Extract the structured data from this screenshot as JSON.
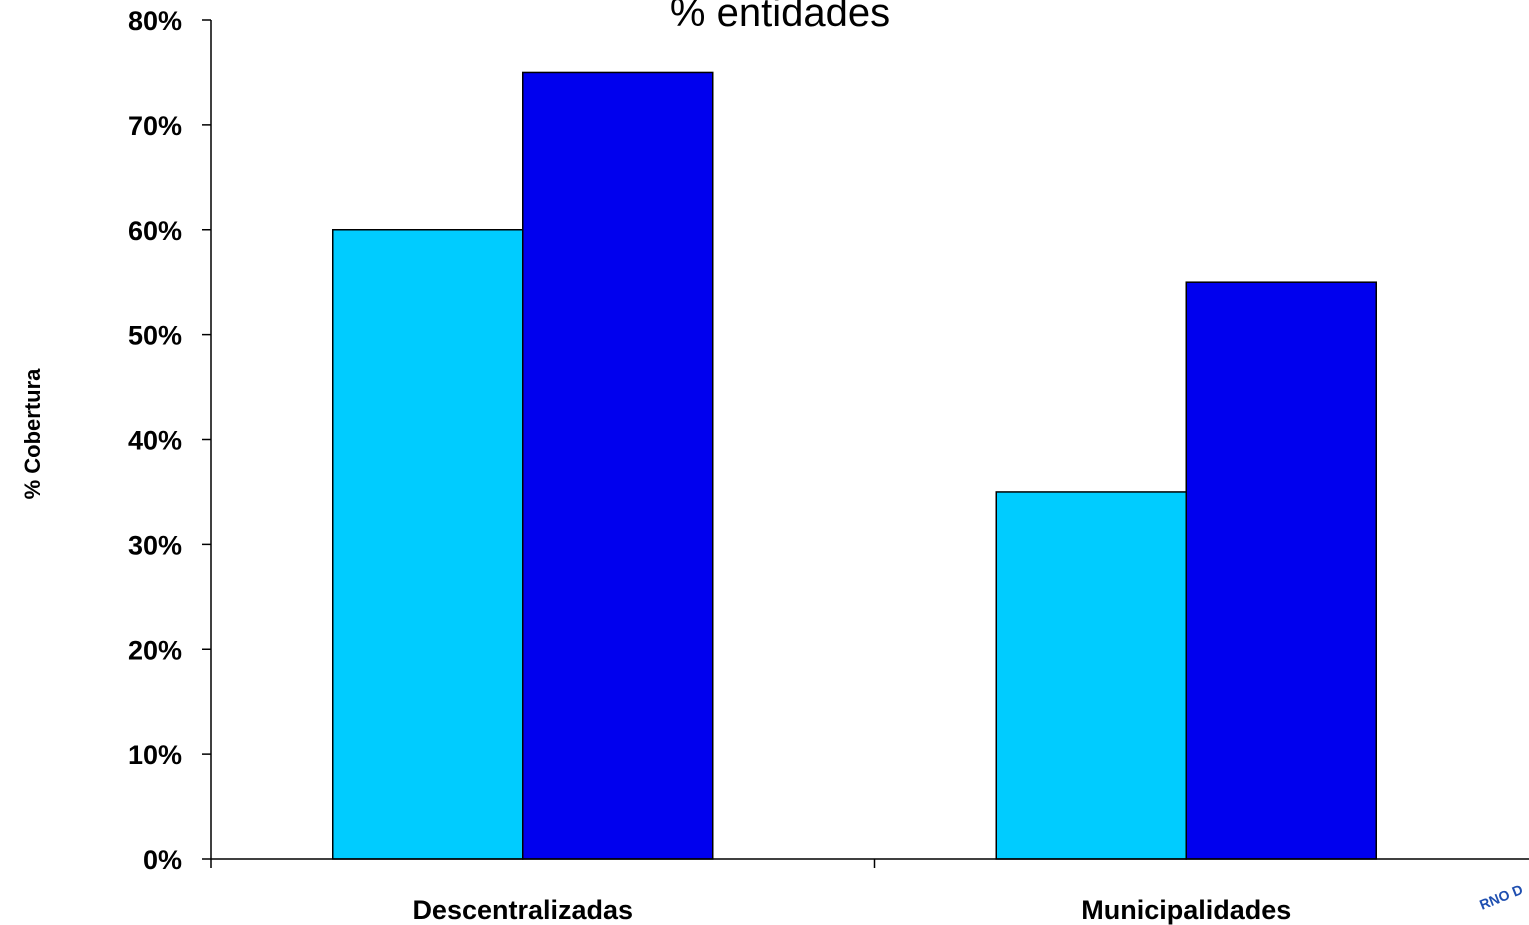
{
  "chart_data": {
    "type": "bar",
    "title": "% entidades",
    "xlabel": "",
    "ylabel": "% Cobertura",
    "categories": [
      "Descentralizadas",
      "Municipalidades"
    ],
    "series": [
      {
        "values": [
          60,
          35
        ],
        "color": "#00ccff"
      },
      {
        "values": [
          75,
          55
        ],
        "color": "#0000ee"
      }
    ],
    "ylim": [
      0,
      80
    ],
    "yticks": [
      0,
      10,
      20,
      30,
      40,
      50,
      60,
      70,
      80
    ],
    "ytick_labels": [
      "0%",
      "10%",
      "20%",
      "30%",
      "40%",
      "50%",
      "60%",
      "70%",
      "80%"
    ],
    "grid": false,
    "legend": "none"
  },
  "logo": {
    "text": "RNO D"
  }
}
